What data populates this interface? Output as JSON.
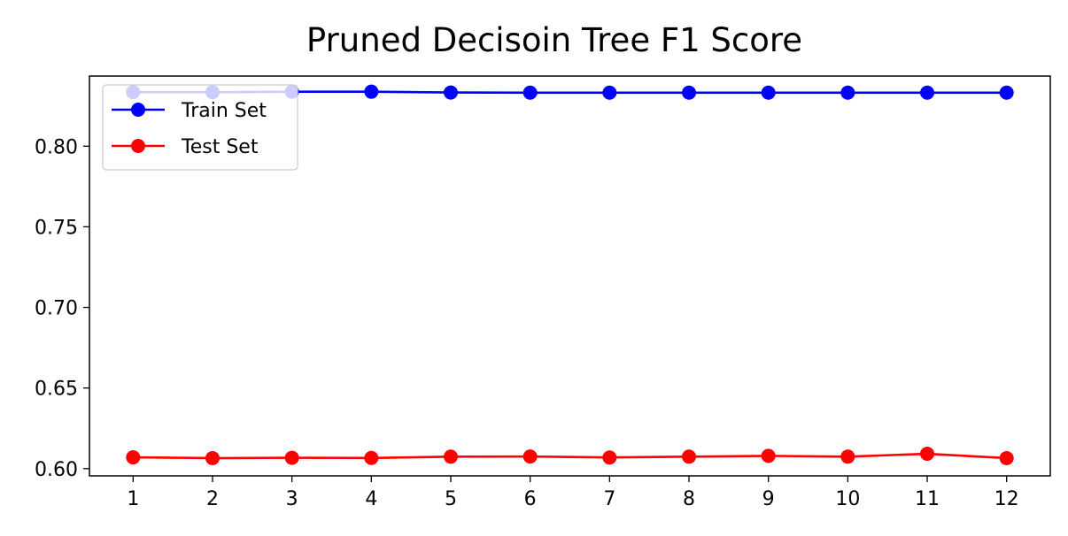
{
  "chart_data": {
    "type": "line",
    "title": "Pruned Decisoin Tree F1 Score",
    "xlabel": "",
    "ylabel": "",
    "x": [
      1,
      2,
      3,
      4,
      5,
      6,
      7,
      8,
      9,
      10,
      11,
      12
    ],
    "xticks": [
      "1",
      "2",
      "3",
      "4",
      "5",
      "6",
      "7",
      "8",
      "9",
      "10",
      "11",
      "12"
    ],
    "yticks": [
      "0.60",
      "0.65",
      "0.70",
      "0.75",
      "0.80"
    ],
    "yticks_values": [
      0.6,
      0.65,
      0.7,
      0.75,
      0.8
    ],
    "xlim": [
      0.45,
      12.55
    ],
    "ylim": [
      0.5955,
      0.8435
    ],
    "grid": false,
    "legend_position": "upper-left",
    "series": [
      {
        "name": "Train Set",
        "color": "#0000ff",
        "marker": "circle",
        "values": [
          0.8335,
          0.8335,
          0.8338,
          0.8338,
          0.8333,
          0.8332,
          0.8332,
          0.8332,
          0.8332,
          0.8332,
          0.8332,
          0.8332
        ]
      },
      {
        "name": "Test Set",
        "color": "#ff0000",
        "marker": "circle",
        "values": [
          0.607,
          0.6065,
          0.6067,
          0.6066,
          0.6074,
          0.6075,
          0.6069,
          0.6074,
          0.6079,
          0.6074,
          0.6092,
          0.6065
        ]
      }
    ]
  }
}
